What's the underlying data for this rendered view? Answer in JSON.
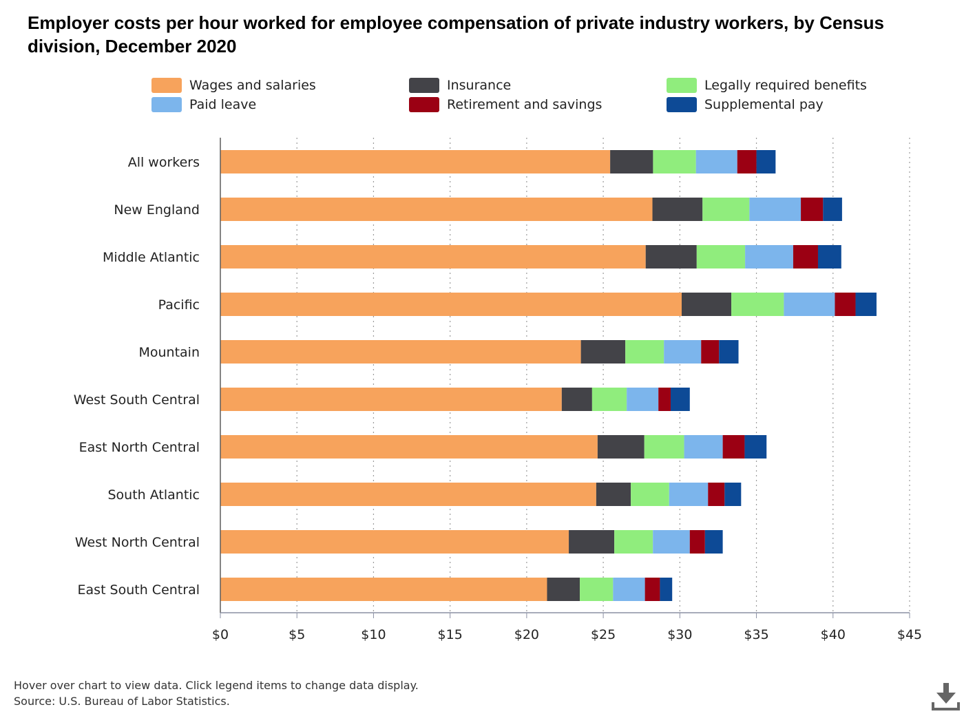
{
  "title": "Employer costs per hour worked for employee compensation of private industry workers, by Census division, December 2020",
  "footer": {
    "note": "Hover over chart to view data. Click legend items to change data display.",
    "source": "Source: U.S. Bureau of Labor Statistics."
  },
  "download_icon": "download-icon",
  "chart_data": {
    "type": "bar",
    "orientation": "horizontal",
    "stacked": true,
    "categories": [
      "All workers",
      "New England",
      "Middle Atlantic",
      "Pacific",
      "Mountain",
      "West South Central",
      "East North Central",
      "South Atlantic",
      "West North Central",
      "East South Central"
    ],
    "series": [
      {
        "name": "Wages and salaries",
        "color": "#f7a35c",
        "values": [
          25.45,
          28.21,
          27.77,
          30.12,
          23.54,
          22.29,
          24.63,
          24.54,
          22.75,
          21.33
        ]
      },
      {
        "name": "Insurance",
        "color": "#434348",
        "values": [
          2.8,
          3.27,
          3.33,
          3.24,
          2.9,
          1.98,
          3.05,
          2.26,
          2.97,
          2.14
        ]
      },
      {
        "name": "Legally required benefits",
        "color": "#90ed7d",
        "values": [
          2.8,
          3.06,
          3.16,
          3.43,
          2.52,
          2.26,
          2.6,
          2.5,
          2.52,
          2.17
        ]
      },
      {
        "name": "Paid leave",
        "color": "#7cb5ec",
        "values": [
          2.7,
          3.36,
          3.14,
          3.33,
          2.43,
          2.07,
          2.52,
          2.54,
          2.41,
          2.08
        ]
      },
      {
        "name": "Retirement and savings",
        "color": "#9b0013",
        "values": [
          1.25,
          1.45,
          1.62,
          1.35,
          1.17,
          0.8,
          1.43,
          1.08,
          0.99,
          0.98
        ]
      },
      {
        "name": "Supplemental pay",
        "color": "#0d4a96",
        "values": [
          1.25,
          1.24,
          1.52,
          1.37,
          1.27,
          1.25,
          1.43,
          1.08,
          1.16,
          0.8
        ]
      }
    ],
    "x_ticks": [
      "$0",
      "$5",
      "$10",
      "$15",
      "$20",
      "$25",
      "$30",
      "$35",
      "$40",
      "$45"
    ],
    "xlim": [
      0,
      45
    ],
    "xlabel": "",
    "ylabel": "",
    "grid": "vertical dotted",
    "legend_position": "top"
  }
}
